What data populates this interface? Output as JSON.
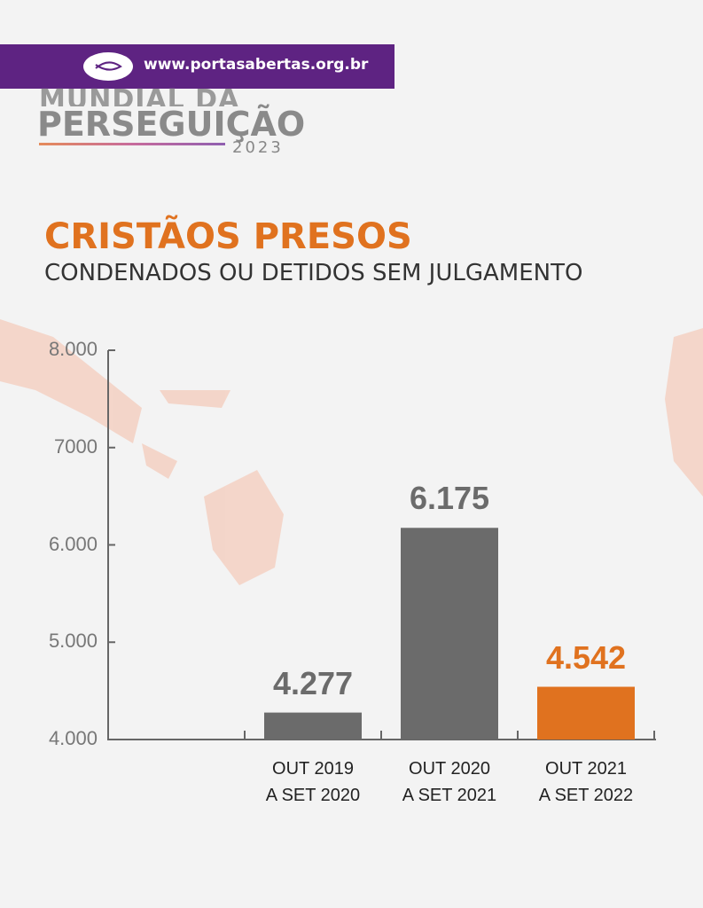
{
  "header": {
    "url": "www.portasabertas.org.br",
    "logo_line1": "MUNDIAL DA",
    "logo_line2": "PERSEGUIÇÃO",
    "logo_year": "2023"
  },
  "chart_data": {
    "type": "bar",
    "title": "CRISTÃOS PRESOS",
    "subtitle": "CONDENADOS OU DETIDOS SEM JULGAMENTO",
    "categories": [
      null,
      "OUT 2019\nA SET 2020",
      "OUT 2020\nA SET 2021",
      "OUT 2021\nA SET 2022"
    ],
    "values": [
      null,
      4277,
      6175,
      4542
    ],
    "value_labels": [
      null,
      "4.277",
      "6.175",
      "4.542"
    ],
    "colors": [
      null,
      "#6b6b6b",
      "#6b6b6b",
      "#e0721f"
    ],
    "ylim": [
      4000,
      8000
    ],
    "yticks": [
      {
        "value": 4000,
        "label": "4.000"
      },
      {
        "value": 5000,
        "label": "5.000"
      },
      {
        "value": 6000,
        "label": "6.000"
      },
      7000,
      {
        "value": 8000,
        "label": "8.000"
      }
    ],
    "grid": false
  }
}
